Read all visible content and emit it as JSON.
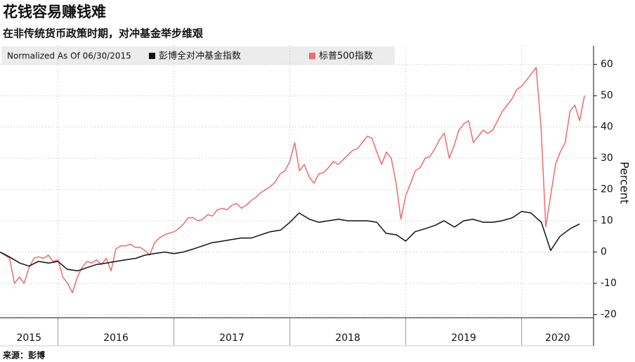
{
  "chart_data": {
    "type": "line",
    "title": "花钱容易赚钱难",
    "subtitle": "在非传统货币政策时期，对冲基金举步维艰",
    "legend_title": "Normalized As Of 06/30/2015",
    "source": "来源：彭博",
    "y_label": "Percent",
    "xlim": [
      2015.5,
      2020.62
    ],
    "xticks": [
      2016,
      2017,
      2018,
      2019,
      2020
    ],
    "year_labels": [
      "2015",
      "2016",
      "2017",
      "2018",
      "2019",
      "2020"
    ],
    "ylim": [
      -21,
      66
    ],
    "yticks": [
      60,
      50,
      40,
      30,
      20,
      10,
      0,
      -10,
      -20
    ],
    "grid": true,
    "series": [
      {
        "name": "彭博全对冲基金指数",
        "color": "#111111",
        "x": [
          2015.5,
          2015.58,
          2015.67,
          2015.75,
          2015.83,
          2015.92,
          2016.0,
          2016.08,
          2016.17,
          2016.25,
          2016.33,
          2016.42,
          2016.5,
          2016.58,
          2016.67,
          2016.75,
          2016.83,
          2016.92,
          2017.0,
          2017.08,
          2017.17,
          2017.25,
          2017.33,
          2017.42,
          2017.5,
          2017.58,
          2017.67,
          2017.75,
          2017.83,
          2017.92,
          2018.0,
          2018.08,
          2018.17,
          2018.25,
          2018.33,
          2018.42,
          2018.5,
          2018.58,
          2018.67,
          2018.75,
          2018.83,
          2018.92,
          2019.0,
          2019.08,
          2019.17,
          2019.25,
          2019.33,
          2019.42,
          2019.5,
          2019.58,
          2019.67,
          2019.75,
          2019.83,
          2019.92,
          2020.0,
          2020.08,
          2020.17,
          2020.25,
          2020.33,
          2020.42,
          2020.5
        ],
        "values": [
          0,
          -1.5,
          -3.5,
          -4.5,
          -3,
          -3.5,
          -3,
          -5.5,
          -6,
          -5,
          -4,
          -3.5,
          -3,
          -2.5,
          -2,
          -1,
          -0.5,
          0,
          -0.5,
          0,
          1,
          2,
          3,
          3.5,
          4,
          4.5,
          4.5,
          5.5,
          6.5,
          7,
          9.5,
          12.5,
          10.5,
          9.5,
          10,
          10.5,
          10,
          10,
          10,
          9.5,
          6,
          5.5,
          3.5,
          6.5,
          7.5,
          8.5,
          10,
          8,
          10,
          10.5,
          9.5,
          9.5,
          10,
          11,
          13,
          12.5,
          9.5,
          0.5,
          5,
          7.5,
          9
        ]
      },
      {
        "name": "标普500指数",
        "color": "#f06a6a",
        "x": [
          2015.5,
          2015.542,
          2015.583,
          2015.625,
          2015.667,
          2015.708,
          2015.75,
          2015.792,
          2015.833,
          2015.875,
          2015.917,
          2015.958,
          2016.0,
          2016.042,
          2016.083,
          2016.125,
          2016.167,
          2016.208,
          2016.25,
          2016.292,
          2016.333,
          2016.375,
          2016.417,
          2016.458,
          2016.5,
          2016.542,
          2016.583,
          2016.625,
          2016.667,
          2016.708,
          2016.75,
          2016.792,
          2016.833,
          2016.875,
          2016.917,
          2016.958,
          2017.0,
          2017.042,
          2017.083,
          2017.125,
          2017.167,
          2017.208,
          2017.25,
          2017.292,
          2017.333,
          2017.375,
          2017.417,
          2017.458,
          2017.5,
          2017.542,
          2017.583,
          2017.625,
          2017.667,
          2017.708,
          2017.75,
          2017.792,
          2017.833,
          2017.875,
          2017.917,
          2017.958,
          2018.0,
          2018.042,
          2018.083,
          2018.125,
          2018.167,
          2018.208,
          2018.25,
          2018.292,
          2018.333,
          2018.375,
          2018.417,
          2018.458,
          2018.5,
          2018.542,
          2018.583,
          2018.625,
          2018.667,
          2018.708,
          2018.75,
          2018.792,
          2018.833,
          2018.875,
          2018.917,
          2018.958,
          2019.0,
          2019.042,
          2019.083,
          2019.125,
          2019.167,
          2019.208,
          2019.25,
          2019.292,
          2019.333,
          2019.375,
          2019.417,
          2019.458,
          2019.5,
          2019.542,
          2019.583,
          2019.625,
          2019.667,
          2019.708,
          2019.75,
          2019.792,
          2019.833,
          2019.875,
          2019.917,
          2019.958,
          2020.0,
          2020.042,
          2020.083,
          2020.125,
          2020.167,
          2020.208,
          2020.25,
          2020.292,
          2020.333,
          2020.375,
          2020.417,
          2020.458,
          2020.5,
          2020.542
        ],
        "values": [
          0,
          -1,
          -2,
          -10,
          -8,
          -10,
          -5,
          -2,
          -1.5,
          -2,
          -1,
          -3,
          -2.5,
          -8,
          -10,
          -13,
          -8,
          -5,
          -3,
          -3.5,
          -2.5,
          -4,
          -2,
          -6,
          1,
          2,
          2,
          2.5,
          1.5,
          1.5,
          0.5,
          -1,
          3,
          4.5,
          5.5,
          6,
          6.5,
          7.5,
          9,
          11,
          11,
          10,
          10.5,
          12,
          11.5,
          13.5,
          14,
          13.5,
          15,
          15.5,
          14,
          15,
          16.5,
          17.5,
          19,
          20,
          21,
          22.5,
          25,
          26,
          29,
          35,
          26,
          28,
          24,
          22,
          25,
          25.5,
          27,
          29,
          28,
          29.5,
          31,
          32.5,
          33,
          35,
          37,
          36.5,
          32,
          28,
          32,
          30,
          22,
          10.5,
          18,
          22,
          26,
          27,
          30,
          30.5,
          33,
          36,
          38,
          30,
          34,
          39,
          41,
          42,
          35,
          37,
          39,
          38,
          39,
          42,
          45,
          47,
          49,
          52,
          53,
          55,
          57,
          59,
          40,
          8,
          18,
          28,
          32,
          35,
          45,
          47,
          42,
          50
        ]
      }
    ]
  }
}
